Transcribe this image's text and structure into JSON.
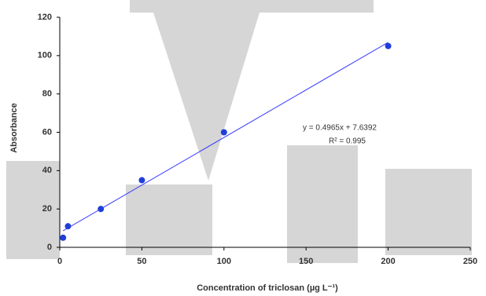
{
  "chart_data": {
    "type": "scatter",
    "x_label": "Concentration of triclosan (µg L⁻¹)",
    "y_label": "Absorbance",
    "x": [
      2,
      5,
      25,
      50,
      100,
      200
    ],
    "values": [
      5,
      11,
      20,
      35,
      60,
      105
    ],
    "color": "#1f3fd8",
    "xlim": [
      0,
      250
    ],
    "xticks": [
      0,
      50,
      100,
      150,
      200,
      250
    ],
    "ylim": [
      0,
      120
    ],
    "yticks": [
      0,
      20,
      40,
      60,
      80,
      100,
      120
    ],
    "grid": false,
    "trendline": {
      "label": "y = 0.4965x + 7.6392",
      "slope": 0.4965,
      "intercept": 7.6392,
      "r2_label": "R² = 0.995",
      "color": "#3b3bff"
    }
  }
}
